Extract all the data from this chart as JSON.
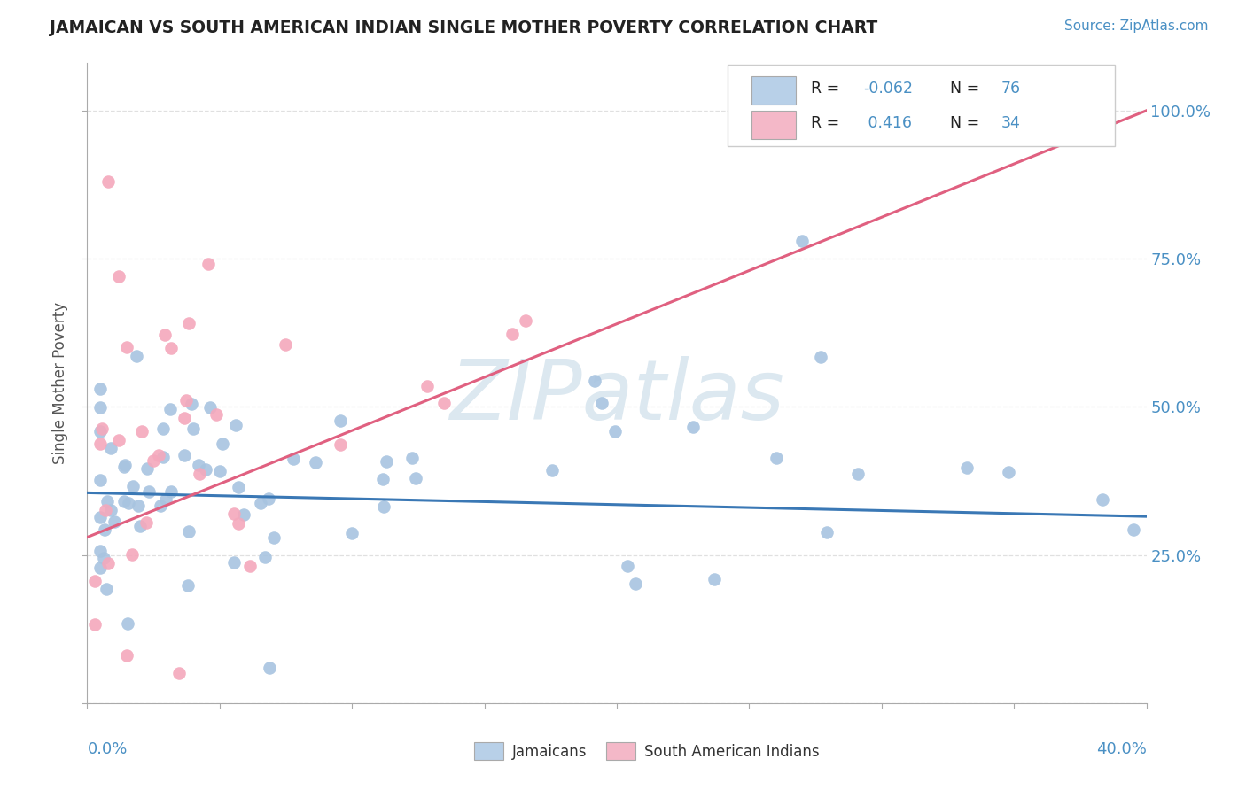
{
  "title": "JAMAICAN VS SOUTH AMERICAN INDIAN SINGLE MOTHER POVERTY CORRELATION CHART",
  "source": "Source: ZipAtlas.com",
  "ylabel": "Single Mother Poverty",
  "xlim": [
    0.0,
    0.4
  ],
  "ylim": [
    0.0,
    1.08
  ],
  "yticks": [
    0.0,
    0.25,
    0.5,
    0.75,
    1.0
  ],
  "ytick_labels_right": [
    "",
    "25.0%",
    "50.0%",
    "75.0%",
    "100.0%"
  ],
  "legend_r_blue": "-0.062",
  "legend_n_blue": "76",
  "legend_r_pink": "0.416",
  "legend_n_pink": "34",
  "blue_dot_color": "#a8c4e0",
  "pink_dot_color": "#f4a8bc",
  "blue_line_color": "#3a78b5",
  "pink_line_color": "#e06080",
  "watermark_text": "ZIPatlas",
  "watermark_color": "#dce8f0",
  "grid_color": "#e0e0e0",
  "tick_color": "#aaaaaa",
  "label_color": "#4a90c4",
  "blue_line_y0": 0.355,
  "blue_line_y1": 0.315,
  "pink_line_y0": 0.28,
  "pink_line_y1": 1.0,
  "blue_seed": 10,
  "pink_seed": 20,
  "dot_size": 110
}
